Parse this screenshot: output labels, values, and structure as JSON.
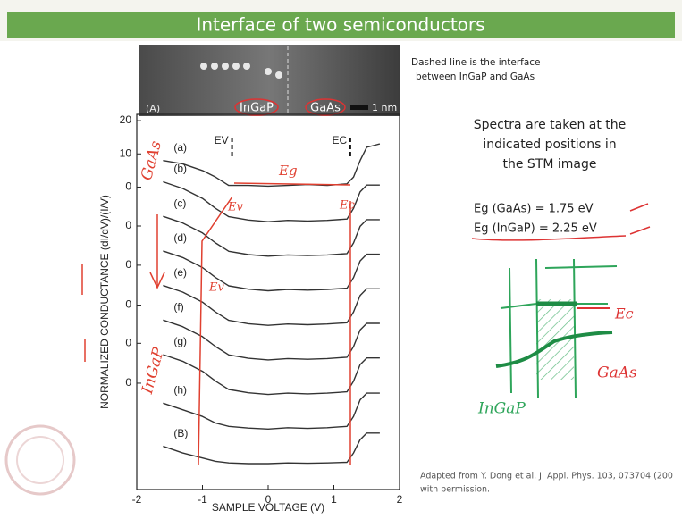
{
  "header": {
    "title": "Interface of two semiconductors"
  },
  "stm_image": {
    "panel": "(A)",
    "labels": [
      "InGaP",
      "GaAs"
    ],
    "scale": "1 nm"
  },
  "notes": {
    "interface": [
      "Dashed line is the interface",
      "between InGaP and GaAs"
    ],
    "spectra": [
      "Spectra are taken at the",
      "indicated positions in",
      "the STM image"
    ],
    "gaps": [
      "Eg (GaAs) = 1.75 eV",
      "Eg (InGaP) = 2.25 eV"
    ]
  },
  "handwriting": {
    "chart": [
      "GaAs",
      "InGaP",
      "Eg",
      "Ev",
      "Ec",
      "Ev"
    ],
    "sketch": [
      "Ec",
      "GaAs",
      "InGaP"
    ]
  },
  "chart_data": {
    "type": "line",
    "ylabel": "NORMALIZED CONDUCTANCE (dI/dV)/(I/V)",
    "xlabel": "SAMPLE VOLTAGE (V)",
    "xlim": [
      -2,
      2
    ],
    "xticks": [
      -2,
      -1,
      0,
      1,
      2
    ],
    "ylim": [
      -91,
      21.9
    ],
    "yticks": [
      20,
      10,
      0,
      {
        "value": -11.7,
        "label": "0"
      },
      {
        "value": -23.5,
        "label": "0"
      },
      {
        "value": -35.5,
        "label": "0"
      },
      {
        "value": -47,
        "label": "0"
      },
      {
        "value": -59,
        "label": "0"
      }
    ],
    "annotations": [
      {
        "text": "EV",
        "x": -0.55
      },
      {
        "text": "EC",
        "x": 1.25
      }
    ],
    "x": [
      -1.6,
      -1.3,
      -1.0,
      -0.8,
      -0.6,
      -0.3,
      0,
      0.3,
      0.6,
      0.9,
      1.2,
      1.3,
      1.4,
      1.5,
      1.6,
      1.7
    ],
    "series": [
      {
        "name": "(a)",
        "color": "#333333",
        "values": [
          8,
          7,
          5,
          3,
          0.5,
          0.5,
          0.3,
          0.5,
          0.8,
          0.5,
          1,
          3,
          8,
          12,
          12.5,
          13
        ]
      },
      {
        "name": "(b)",
        "color": "#333333",
        "values": [
          1.6,
          -0.4,
          -3.4,
          -6.4,
          -8.9,
          -9.9,
          -10.4,
          -10,
          -10.2,
          -10,
          -9.6,
          -6.4,
          -1.4,
          0.6,
          0.6,
          0.6
        ]
      },
      {
        "name": "(c)",
        "color": "#333333",
        "values": [
          -8.8,
          -10.8,
          -13.8,
          -16.8,
          -19.3,
          -20.3,
          -20.8,
          -20.4,
          -20.6,
          -20.4,
          -20,
          -16.8,
          -11.8,
          -9.8,
          -9.8,
          -9.8
        ]
      },
      {
        "name": "(d)",
        "color": "#333333",
        "values": [
          -19.2,
          -21.2,
          -24.2,
          -27.2,
          -29.7,
          -30.7,
          -31.2,
          -30.8,
          -31,
          -30.8,
          -30.4,
          -27.2,
          -22.2,
          -20.2,
          -20.2,
          -20.2
        ]
      },
      {
        "name": "(e)",
        "color": "#333333",
        "values": [
          -29.6,
          -31.6,
          -34.6,
          -37.6,
          -40.1,
          -41.1,
          -41.6,
          -41.2,
          -41.4,
          -41.2,
          -40.8,
          -37.6,
          -32.6,
          -30.6,
          -30.6,
          -30.6
        ]
      },
      {
        "name": "(f)",
        "color": "#333333",
        "values": [
          -40,
          -42,
          -45,
          -48,
          -50.5,
          -51.5,
          -52,
          -51.6,
          -51.8,
          -51.6,
          -51.2,
          -48,
          -43,
          -41,
          -41,
          -41
        ]
      },
      {
        "name": "(g)",
        "color": "#333333",
        "values": [
          -50.4,
          -52.4,
          -55.4,
          -58.4,
          -60.9,
          -61.9,
          -62.4,
          -62,
          -62.2,
          -62,
          -61.6,
          -58.4,
          -53.4,
          -51.4,
          -51.4,
          -51.4
        ]
      },
      {
        "name": "(h)",
        "color": "#333333",
        "values": [
          -65,
          -67,
          -69,
          -71,
          -72,
          -72.5,
          -72.8,
          -72.4,
          -72.6,
          -72.4,
          -72,
          -69,
          -64,
          -62,
          -62,
          -62
        ]
      },
      {
        "name": "(B)",
        "color": "#333333",
        "values": [
          -78,
          -80,
          -81.5,
          -82.5,
          -83,
          -83.2,
          -83.2,
          -83,
          -83.1,
          -83,
          -82.8,
          -80,
          -76,
          -74,
          -74,
          -74
        ]
      }
    ]
  },
  "footer": [
    "Adapted from Y. Dong et al. J. Appl. Phys. 103, 073704 (200",
    "with permission."
  ]
}
